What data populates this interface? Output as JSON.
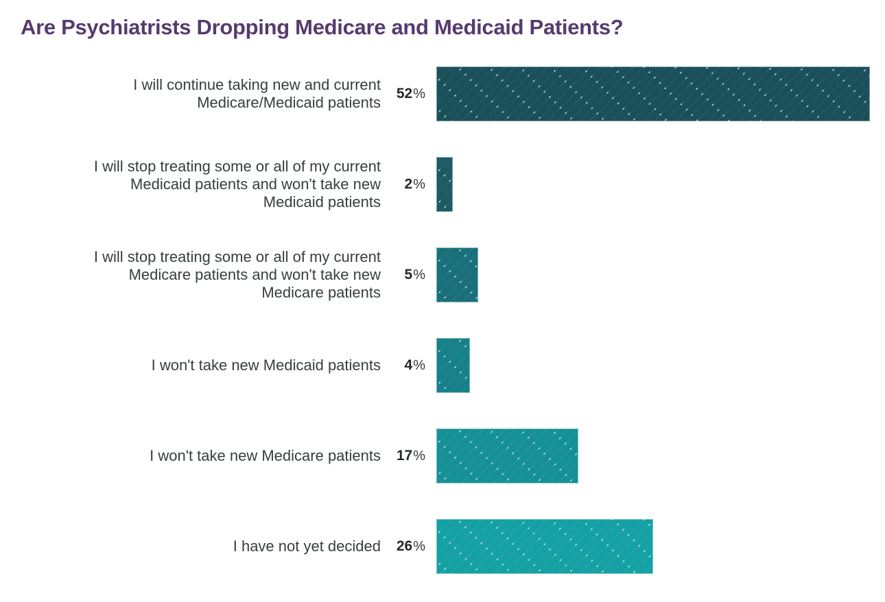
{
  "title": "Are Psychiatrists Dropping Medicare and Medicaid Patients?",
  "title_color": "#563a6e",
  "text_color": "#383d40",
  "percent_sign": "%",
  "chart_data": {
    "type": "bar",
    "orientation": "horizontal",
    "title": "Are Psychiatrists Dropping Medicare and Medicaid Patients?",
    "categories": [
      "I will continue taking new and current Medicare/Medicaid patients",
      "I will stop treating some or all of my current Medicaid patients and won't take new Medicaid patients",
      "I will stop treating some or all of my current Medicare patients and won't take new Medicare patients",
      "I won't take new Medicaid patients",
      "I won't take new Medicare patients",
      "I have not yet decided"
    ],
    "values": [
      52,
      2,
      5,
      4,
      17,
      26
    ],
    "value_labels": [
      "52%",
      "2%",
      "5%",
      "4%",
      "17%",
      "26%"
    ],
    "bar_colors": [
      "#1a505a",
      "#1c5a64",
      "#19707a",
      "#178089",
      "#169097",
      "#15a0a4"
    ],
    "pattern": "diagonal-dotted-lines",
    "xlabel": "",
    "ylabel": "",
    "xlim": [
      0,
      52
    ],
    "grid": false,
    "legend": false
  }
}
